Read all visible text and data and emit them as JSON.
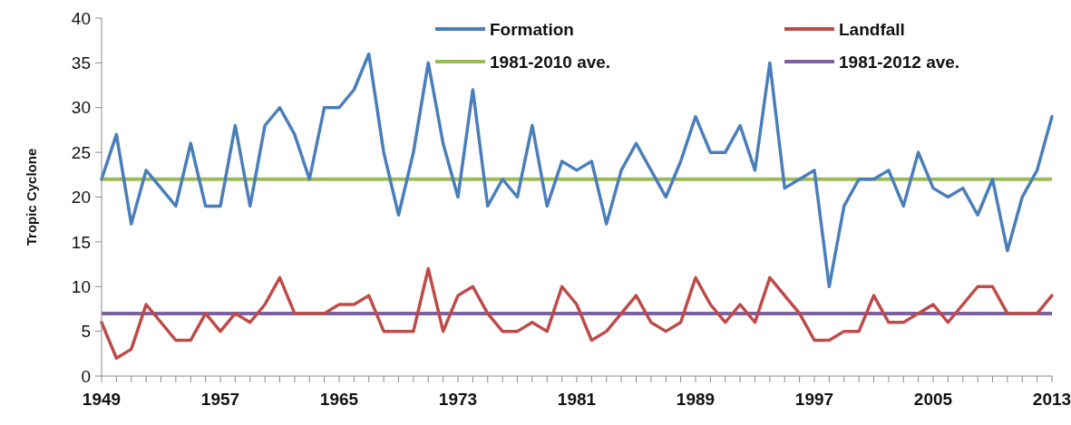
{
  "chart_data": {
    "type": "line",
    "ylabel": "Tropic Cyclone",
    "x": [
      1949,
      1950,
      1951,
      1952,
      1953,
      1954,
      1955,
      1956,
      1957,
      1958,
      1959,
      1960,
      1961,
      1962,
      1963,
      1964,
      1965,
      1966,
      1967,
      1968,
      1969,
      1970,
      1971,
      1972,
      1973,
      1974,
      1975,
      1976,
      1977,
      1978,
      1979,
      1980,
      1981,
      1982,
      1983,
      1984,
      1985,
      1986,
      1987,
      1988,
      1989,
      1990,
      1991,
      1992,
      1993,
      1994,
      1995,
      1996,
      1997,
      1998,
      1999,
      2000,
      2001,
      2002,
      2003,
      2004,
      2005,
      2006,
      2007,
      2008,
      2009,
      2010,
      2011,
      2012,
      2013
    ],
    "series": [
      {
        "name": "Formation",
        "color": "#4a7ebb",
        "values": [
          22,
          27,
          17,
          23,
          21,
          19,
          26,
          19,
          19,
          28,
          19,
          28,
          30,
          27,
          22,
          30,
          30,
          32,
          36,
          25,
          18,
          25,
          35,
          26,
          20,
          32,
          19,
          22,
          20,
          28,
          19,
          24,
          23,
          24,
          17,
          23,
          26,
          23,
          20,
          24,
          29,
          25,
          25,
          28,
          23,
          35,
          21,
          22,
          23,
          10,
          19,
          22,
          22,
          23,
          19,
          25,
          21,
          20,
          21,
          18,
          22,
          14,
          20,
          23,
          29
        ]
      },
      {
        "name": "Landfall",
        "color": "#be4b48",
        "values": [
          6,
          2,
          3,
          8,
          6,
          4,
          4,
          7,
          5,
          7,
          6,
          8,
          11,
          7,
          7,
          7,
          8,
          8,
          9,
          5,
          5,
          5,
          12,
          5,
          9,
          10,
          7,
          5,
          5,
          6,
          5,
          10,
          8,
          4,
          5,
          7,
          9,
          6,
          5,
          6,
          11,
          8,
          6,
          8,
          6,
          11,
          9,
          7,
          4,
          4,
          5,
          5,
          9,
          6,
          6,
          7,
          8,
          6,
          8,
          10,
          10,
          7,
          7,
          7,
          9
        ]
      }
    ],
    "ref_lines": [
      {
        "axis": "y",
        "value": 22,
        "label": "1981-2010 ave.",
        "color": "#9bbb59"
      },
      {
        "axis": "y",
        "value": 7,
        "label": "1981-2012 ave.",
        "color": "#7d60a0"
      }
    ],
    "xlim": [
      1949,
      2013
    ],
    "xticks": [
      1949,
      {
        "value": 1950,
        "label": null
      },
      {
        "value": 1951,
        "label": null
      },
      {
        "value": 1952,
        "label": null
      },
      {
        "value": 1953,
        "label": null
      },
      {
        "value": 1954,
        "label": null
      },
      {
        "value": 1955,
        "label": null
      },
      {
        "value": 1956,
        "label": null
      },
      1957,
      {
        "value": 1958,
        "label": null
      },
      {
        "value": 1959,
        "label": null
      },
      {
        "value": 1960,
        "label": null
      },
      {
        "value": 1961,
        "label": null
      },
      {
        "value": 1962,
        "label": null
      },
      {
        "value": 1963,
        "label": null
      },
      {
        "value": 1964,
        "label": null
      },
      1965,
      {
        "value": 1966,
        "label": null
      },
      {
        "value": 1967,
        "label": null
      },
      {
        "value": 1968,
        "label": null
      },
      {
        "value": 1969,
        "label": null
      },
      {
        "value": 1970,
        "label": null
      },
      {
        "value": 1971,
        "label": null
      },
      {
        "value": 1972,
        "label": null
      },
      1973,
      {
        "value": 1974,
        "label": null
      },
      {
        "value": 1975,
        "label": null
      },
      {
        "value": 1976,
        "label": null
      },
      {
        "value": 1977,
        "label": null
      },
      {
        "value": 1978,
        "label": null
      },
      {
        "value": 1979,
        "label": null
      },
      {
        "value": 1980,
        "label": null
      },
      1981,
      {
        "value": 1982,
        "label": null
      },
      {
        "value": 1983,
        "label": null
      },
      {
        "value": 1984,
        "label": null
      },
      {
        "value": 1985,
        "label": null
      },
      {
        "value": 1986,
        "label": null
      },
      {
        "value": 1987,
        "label": null
      },
      {
        "value": 1988,
        "label": null
      },
      1989,
      {
        "value": 1990,
        "label": null
      },
      {
        "value": 1991,
        "label": null
      },
      {
        "value": 1992,
        "label": null
      },
      {
        "value": 1993,
        "label": null
      },
      {
        "value": 1994,
        "label": null
      },
      {
        "value": 1995,
        "label": null
      },
      {
        "value": 1996,
        "label": null
      },
      1997,
      {
        "value": 1998,
        "label": null
      },
      {
        "value": 1999,
        "label": null
      },
      {
        "value": 2000,
        "label": null
      },
      {
        "value": 2001,
        "label": null
      },
      {
        "value": 2002,
        "label": null
      },
      {
        "value": 2003,
        "label": null
      },
      {
        "value": 2004,
        "label": null
      },
      2005,
      {
        "value": 2006,
        "label": null
      },
      {
        "value": 2007,
        "label": null
      },
      {
        "value": 2008,
        "label": null
      },
      {
        "value": 2009,
        "label": null
      },
      {
        "value": 2010,
        "label": null
      },
      {
        "value": 2011,
        "label": null
      },
      {
        "value": 2012,
        "label": null
      },
      2013
    ],
    "ylim": [
      0,
      40
    ],
    "yticks": [
      0,
      5,
      10,
      15,
      20,
      25,
      30,
      35,
      40
    ],
    "grid": false,
    "legend": "top right",
    "line_style": "solid",
    "marker": "none"
  }
}
